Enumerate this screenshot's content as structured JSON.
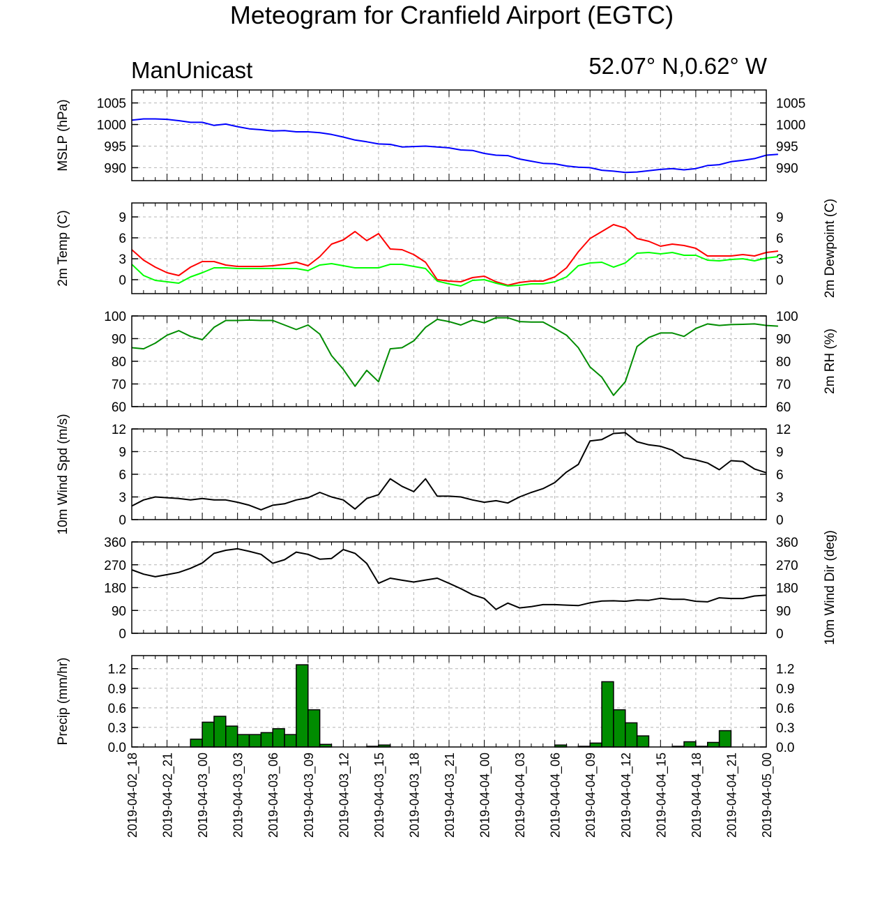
{
  "page": {
    "title": "Meteogram for Cranfield Airport (EGTC)",
    "model": "ManUnicast",
    "location": "52.07° N,0.62° W"
  },
  "chart_data": [
    {
      "type": "line",
      "panel": "mslp",
      "ylabel_left": "MSLP (hPa)",
      "ylabel_right": "",
      "ylim": [
        987,
        1008
      ],
      "yticks": [
        "990",
        "995",
        "1000",
        "1005"
      ],
      "grid": true,
      "series": [
        {
          "color": "#0000ff",
          "values": [
            1001.0,
            1001.3,
            1001.3,
            1001.2,
            1000.9,
            1000.5,
            1000.5,
            999.8,
            1000.1,
            999.5,
            999.0,
            998.8,
            998.5,
            998.6,
            998.3,
            998.3,
            998.1,
            997.7,
            997.1,
            996.4,
            996.0,
            995.5,
            995.4,
            994.8,
            994.9,
            995.0,
            994.8,
            994.6,
            994.1,
            994.0,
            993.3,
            992.9,
            992.8,
            992.0,
            991.5,
            991.0,
            990.9,
            990.4,
            990.1,
            990.0,
            989.4,
            989.2,
            988.9,
            989.0,
            989.3,
            989.6,
            989.8,
            989.5,
            989.8,
            990.5,
            990.7,
            991.4,
            991.7,
            992.1,
            992.9,
            993.1
          ]
        }
      ]
    },
    {
      "type": "line",
      "panel": "temperature",
      "ylabel_left": "2m Temp (C)",
      "ylabel_right": "2m Dewpoint (C)",
      "ylim": [
        -2,
        11
      ],
      "yticks": [
        "0",
        "3",
        "6",
        "9"
      ],
      "grid": true,
      "series": [
        {
          "color": "#ff0000",
          "values": [
            4.3,
            2.8,
            1.8,
            1.0,
            0.6,
            1.8,
            2.6,
            2.6,
            2.1,
            1.9,
            1.9,
            1.9,
            2.0,
            2.2,
            2.5,
            2.0,
            3.3,
            5.1,
            5.7,
            6.9,
            5.6,
            6.6,
            4.4,
            4.3,
            3.6,
            2.5,
            0.0,
            -0.2,
            -0.3,
            0.3,
            0.5,
            -0.3,
            -0.8,
            -0.4,
            -0.2,
            -0.2,
            0.4,
            1.7,
            4.0,
            5.9,
            6.9,
            7.9,
            7.4,
            5.9,
            5.5,
            4.8,
            5.1,
            4.9,
            4.5,
            3.4,
            3.4,
            3.4,
            3.6,
            3.4,
            3.9,
            4.1
          ]
        },
        {
          "color": "#00ff00",
          "values": [
            2.2,
            0.6,
            -0.1,
            -0.3,
            -0.5,
            0.4,
            1.0,
            1.7,
            1.7,
            1.6,
            1.6,
            1.6,
            1.6,
            1.6,
            1.6,
            1.3,
            2.1,
            2.3,
            2.0,
            1.7,
            1.7,
            1.7,
            2.2,
            2.2,
            1.9,
            1.6,
            -0.2,
            -0.6,
            -0.9,
            -0.1,
            0.0,
            -0.5,
            -0.9,
            -0.8,
            -0.6,
            -0.6,
            -0.3,
            0.4,
            2.0,
            2.4,
            2.5,
            1.8,
            2.4,
            3.8,
            3.9,
            3.7,
            3.9,
            3.5,
            3.5,
            2.8,
            2.7,
            2.9,
            3.0,
            2.7,
            3.1,
            3.3
          ]
        }
      ]
    },
    {
      "type": "line",
      "panel": "rh",
      "ylabel_left": "",
      "ylabel_right": "2m RH (%)",
      "ylim": [
        60,
        100
      ],
      "yticks": [
        "60",
        "70",
        "80",
        "90",
        "100"
      ],
      "grid": true,
      "series": [
        {
          "color": "#008c00",
          "values": [
            86,
            85.5,
            88,
            91.5,
            93.5,
            91,
            89.5,
            95,
            98,
            98,
            98.2,
            98,
            98,
            96,
            94,
            96,
            92,
            82.5,
            76.5,
            69,
            76,
            71,
            85.5,
            86,
            89,
            95,
            98.5,
            97.5,
            96,
            98.2,
            97,
            99.2,
            99.2,
            97.5,
            97.3,
            97.3,
            94.5,
            91.5,
            86,
            77.5,
            73,
            65,
            71,
            86.5,
            90.5,
            92.5,
            92.5,
            91,
            94.5,
            96.5,
            95.8,
            96.2,
            96.3,
            96.5,
            95.8,
            95.5
          ]
        }
      ]
    },
    {
      "type": "line",
      "panel": "wind_speed",
      "ylabel_left": "10m Wind Spd (m/s)",
      "ylabel_right": "",
      "ylim": [
        0,
        12
      ],
      "yticks": [
        "0",
        "3",
        "6",
        "9",
        "12"
      ],
      "grid": true,
      "series": [
        {
          "color": "#000000",
          "values": [
            1.8,
            2.6,
            3.0,
            2.9,
            2.8,
            2.6,
            2.8,
            2.6,
            2.6,
            2.3,
            1.9,
            1.3,
            1.9,
            2.1,
            2.6,
            2.9,
            3.6,
            3.0,
            2.6,
            1.4,
            2.8,
            3.3,
            5.4,
            4.4,
            3.7,
            5.4,
            3.1,
            3.1,
            3.0,
            2.6,
            2.3,
            2.5,
            2.2,
            3.0,
            3.6,
            4.1,
            4.9,
            6.3,
            7.3,
            10.4,
            10.6,
            11.4,
            11.5,
            10.3,
            9.9,
            9.7,
            9.2,
            8.2,
            7.9,
            7.5,
            6.6,
            7.8,
            7.7,
            6.7,
            6.2
          ]
        }
      ]
    },
    {
      "type": "line",
      "panel": "wind_direction",
      "ylabel_left": "",
      "ylabel_right": "10m Wind Dir (deg)",
      "ylim": [
        0,
        360
      ],
      "yticks": [
        "0",
        "90",
        "180",
        "270",
        "360"
      ],
      "grid": true,
      "series": [
        {
          "color": "#000000",
          "values": [
            250,
            233,
            223,
            231,
            240,
            256,
            277,
            315,
            327,
            333,
            323,
            311,
            276,
            290,
            320,
            311,
            292,
            295,
            330,
            315,
            275,
            197,
            217,
            209,
            202,
            210,
            217,
            197,
            176,
            152,
            137,
            94,
            119,
            100,
            105,
            113,
            113,
            111,
            109,
            120,
            127,
            128,
            126,
            131,
            130,
            138,
            134,
            134,
            126,
            124,
            140,
            137,
            137,
            147,
            150
          ]
        }
      ]
    },
    {
      "type": "bar",
      "panel": "precip",
      "ylabel_left": "Precip (mm/hr)",
      "ylabel_right": "",
      "ylim": [
        0,
        1.4
      ],
      "yticks": [
        "0.0",
        "0.3",
        "0.6",
        "0.9",
        "1.2"
      ],
      "grid": true,
      "color": "#008c00",
      "values": [
        0,
        0,
        0,
        0,
        0,
        0.12,
        0.38,
        0.47,
        0.32,
        0.19,
        0.19,
        0.22,
        0.28,
        0.19,
        1.26,
        0.57,
        0.04,
        0,
        0,
        0,
        0.01,
        0.03,
        0,
        0,
        0,
        0,
        0,
        0,
        0,
        0,
        0,
        0,
        0,
        0,
        0,
        0,
        0.03,
        0,
        0.01,
        0.06,
        1.0,
        0.57,
        0.37,
        0.17,
        0,
        0,
        0.01,
        0.08,
        0.01,
        0.07,
        0.25,
        0,
        0,
        0,
        0
      ]
    }
  ],
  "x_axis": {
    "ticks": [
      "2019-04-02_18",
      "2019-04-02_21",
      "2019-04-03_00",
      "2019-04-03_03",
      "2019-04-03_06",
      "2019-04-03_09",
      "2019-04-03_12",
      "2019-04-03_15",
      "2019-04-03_18",
      "2019-04-03_21",
      "2019-04-04_00",
      "2019-04-04_03",
      "2019-04-04_06",
      "2019-04-04_09",
      "2019-04-04_12",
      "2019-04-04_15",
      "2019-04-04_18",
      "2019-04-04_21",
      "2019-04-05_00"
    ]
  }
}
